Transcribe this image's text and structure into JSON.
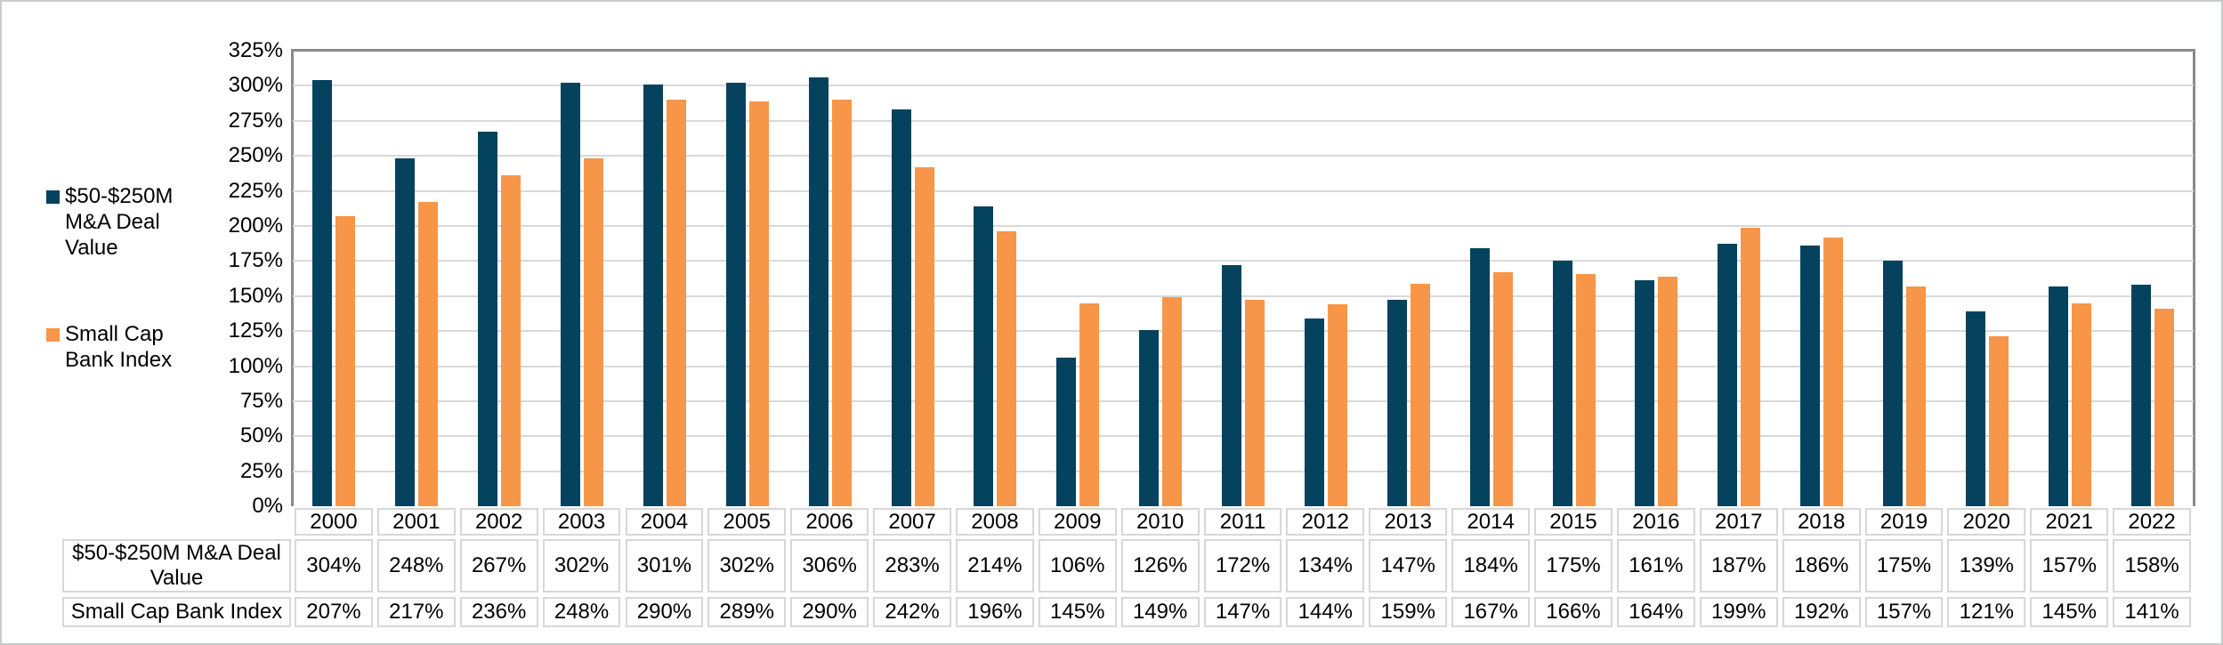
{
  "chart_data": {
    "type": "bar",
    "title": "",
    "categories": [
      "2000",
      "2001",
      "2002",
      "2003",
      "2004",
      "2005",
      "2006",
      "2007",
      "2008",
      "2009",
      "2010",
      "2011",
      "2012",
      "2013",
      "2014",
      "2015",
      "2016",
      "2017",
      "2018",
      "2019",
      "2020",
      "2021",
      "2022"
    ],
    "series": [
      {
        "name": "$50-$250M M&A Deal Value",
        "color": "#05425e",
        "values": [
          304,
          248,
          267,
          302,
          301,
          302,
          306,
          283,
          214,
          106,
          126,
          172,
          134,
          147,
          184,
          175,
          161,
          187,
          186,
          175,
          139,
          157,
          158
        ]
      },
      {
        "name": "Small Cap Bank Index",
        "color": "#f79649",
        "values": [
          207,
          217,
          236,
          248,
          290,
          289,
          290,
          242,
          196,
          145,
          149,
          147,
          144,
          159,
          167,
          166,
          164,
          199,
          192,
          157,
          121,
          145,
          141
        ]
      }
    ],
    "xlabel": "",
    "ylabel": "",
    "ylim": [
      0,
      325
    ],
    "ytick_step": 25,
    "yticks": [
      "0%",
      "25%",
      "50%",
      "75%",
      "100%",
      "125%",
      "150%",
      "175%",
      "200%",
      "225%",
      "250%",
      "275%",
      "300%",
      "325%"
    ],
    "grid": true,
    "legend_position": "left",
    "value_suffix": "%",
    "data_table_shown": true
  },
  "legend": {
    "items": [
      {
        "label": "$50-$250M\nM&A Deal\nValue",
        "color": "#05425e"
      },
      {
        "label": "Small Cap\nBank Index",
        "color": "#f79649"
      }
    ]
  },
  "data_table": {
    "row_headers": [
      "$50-$250M M&A Deal Value",
      "Small Cap Bank Index"
    ],
    "columns": [
      "2000",
      "2001",
      "2002",
      "2003",
      "2004",
      "2005",
      "2006",
      "2007",
      "2008",
      "2009",
      "2010",
      "2011",
      "2012",
      "2013",
      "2014",
      "2015",
      "2016",
      "2017",
      "2018",
      "2019",
      "2020",
      "2021",
      "2022"
    ],
    "rows": [
      [
        "304%",
        "248%",
        "267%",
        "302%",
        "301%",
        "302%",
        "306%",
        "283%",
        "214%",
        "106%",
        "126%",
        "172%",
        "134%",
        "147%",
        "184%",
        "175%",
        "161%",
        "187%",
        "186%",
        "175%",
        "139%",
        "157%",
        "158%"
      ],
      [
        "207%",
        "217%",
        "236%",
        "248%",
        "290%",
        "289%",
        "290%",
        "242%",
        "196%",
        "145%",
        "149%",
        "147%",
        "144%",
        "159%",
        "167%",
        "166%",
        "164%",
        "199%",
        "192%",
        "157%",
        "121%",
        "145%",
        "141%"
      ]
    ]
  },
  "colors": {
    "grid": "#d9d9d9",
    "plot_border": "#8a8a8a",
    "table_border": "#d7d7d7",
    "outer_border": "#c9cacb",
    "text": "#000000"
  }
}
